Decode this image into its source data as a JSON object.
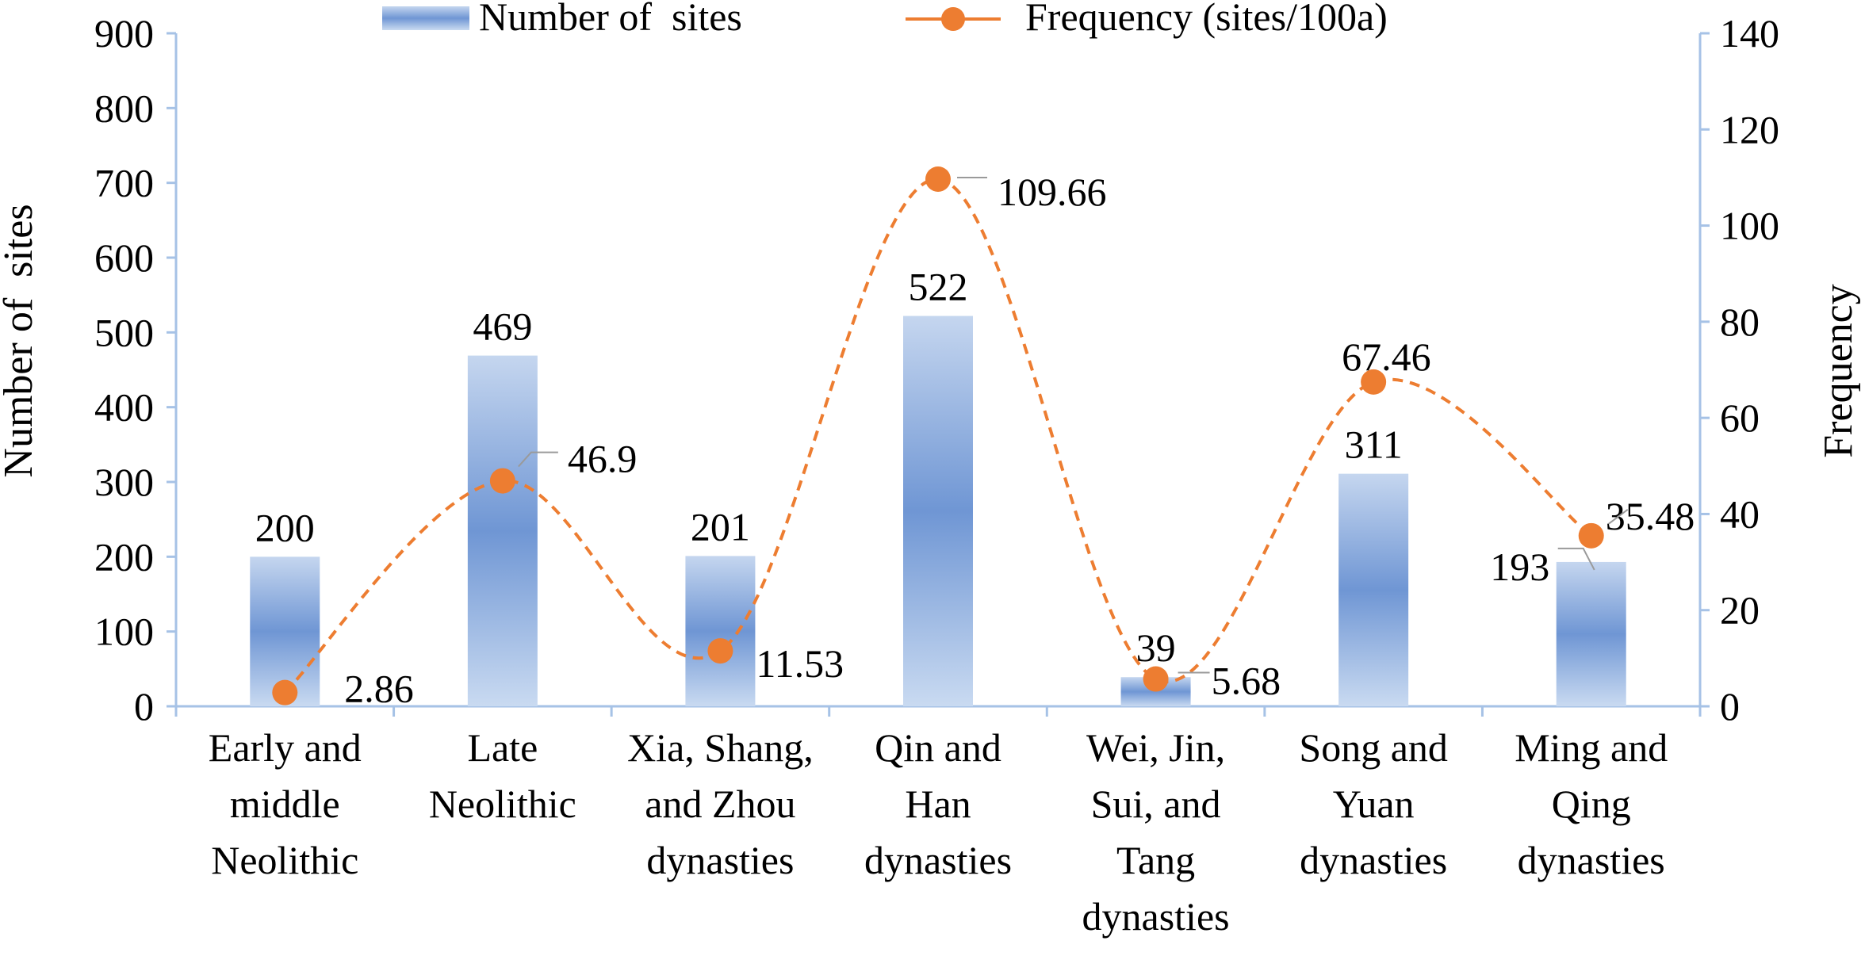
{
  "chart_data": {
    "type": "bar",
    "title": "",
    "categories": [
      [
        "Early and",
        "middle",
        "Neolithic"
      ],
      [
        "Late",
        "Neolithic"
      ],
      [
        "Xia, Shang,",
        "and Zhou",
        "dynasties"
      ],
      [
        "Qin and",
        "Han",
        "dynasties"
      ],
      [
        "Wei, Jin,",
        "Sui, and",
        "Tang",
        "dynasties"
      ],
      [
        "Song and",
        "Yuan",
        "dynasties"
      ],
      [
        "Ming and",
        "Qing",
        "dynasties"
      ]
    ],
    "series": [
      {
        "name": "Number of  sites",
        "type": "bar",
        "axis": "left",
        "values": [
          200,
          469,
          201,
          522,
          39,
          311,
          193
        ],
        "labels": [
          "200",
          "469",
          "201",
          "522",
          "39",
          "311",
          "193"
        ],
        "color": "#4472c4"
      },
      {
        "name": "Frequency (sites/100a)",
        "type": "line",
        "axis": "right",
        "style": "dashed-smooth",
        "values": [
          2.86,
          46.9,
          11.53,
          109.66,
          5.68,
          67.46,
          35.48
        ],
        "labels": [
          "2.86",
          "46.9",
          "11.53",
          "109.66",
          "5.68",
          "67.46",
          "35.48"
        ],
        "color": "#ed7d31"
      }
    ],
    "y_left": {
      "label": "Number of  sites",
      "ylim": [
        0,
        900
      ],
      "ticks": [
        "0",
        "100",
        "200",
        "300",
        "400",
        "500",
        "600",
        "700",
        "800",
        "900"
      ]
    },
    "y_right": {
      "label": "Frequency",
      "ylim": [
        0,
        140
      ],
      "ticks": [
        "0",
        "20",
        "40",
        "60",
        "80",
        "100",
        "120",
        "140"
      ]
    },
    "grid": false,
    "legend": "top-center",
    "axis_color": "#a6c2e6"
  }
}
